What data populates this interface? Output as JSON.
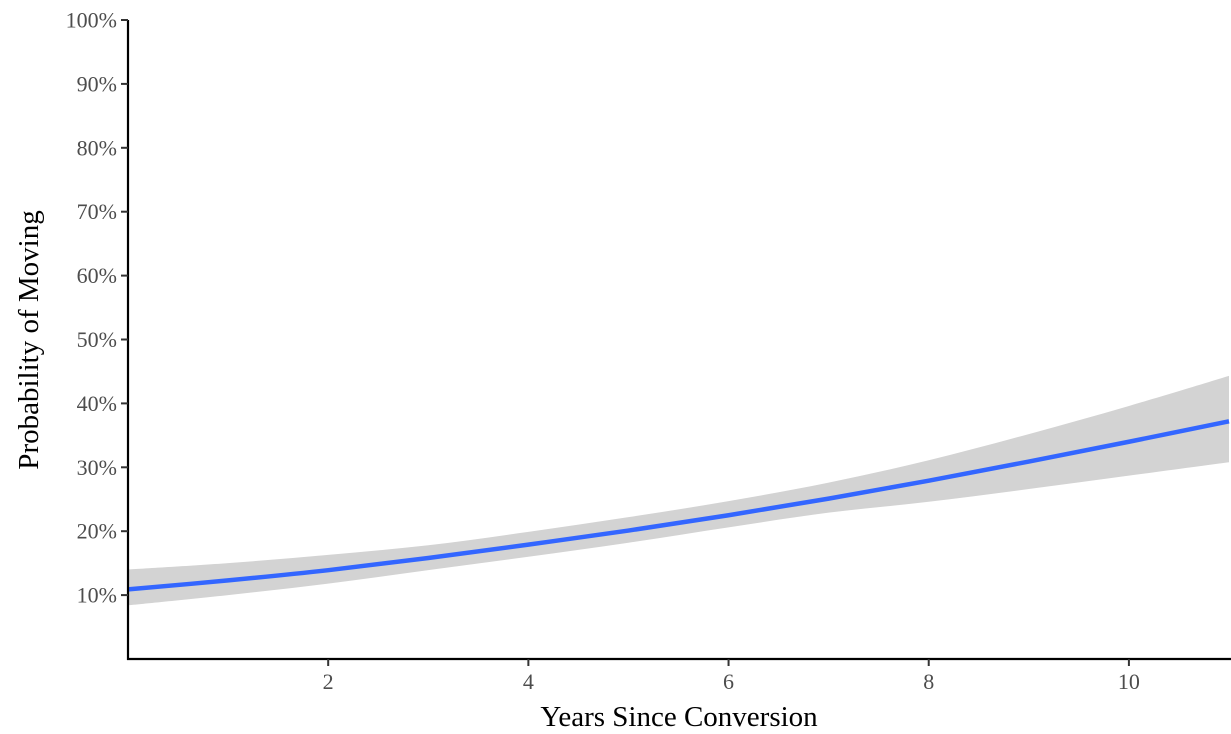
{
  "chart_data": {
    "type": "line",
    "title": "",
    "xlabel": "Years Since Conversion",
    "ylabel": "Probability of Moving",
    "xlim": [
      0,
      11
    ],
    "ylim": [
      0,
      100
    ],
    "x_ticks": [
      2,
      4,
      6,
      8,
      10
    ],
    "x_tick_labels": [
      "2",
      "4",
      "6",
      "8",
      "10"
    ],
    "y_ticks": [
      10,
      20,
      30,
      40,
      50,
      60,
      70,
      80,
      90,
      100
    ],
    "y_tick_labels": [
      "10%",
      "20%",
      "30%",
      "40%",
      "50%",
      "60%",
      "70%",
      "80%",
      "90%",
      "100%"
    ],
    "grid": false,
    "legend": "none",
    "series": [
      {
        "color": "#3366ff",
        "x": [
          0,
          1,
          2,
          3,
          4,
          5,
          6,
          7,
          8,
          9,
          10,
          11
        ],
        "y": [
          10.9,
          12.3,
          13.9,
          15.8,
          17.9,
          20.1,
          22.5,
          25.1,
          27.9,
          30.9,
          34.0,
          37.2
        ],
        "ci_lower": [
          8.4,
          10.0,
          11.8,
          13.9,
          16.0,
          18.2,
          20.6,
          22.9,
          24.6,
          26.6,
          28.7,
          30.8
        ],
        "ci_upper": [
          14.0,
          15.0,
          16.3,
          17.8,
          19.9,
          22.2,
          24.7,
          27.6,
          31.1,
          35.2,
          39.6,
          44.3
        ],
        "ci_color": "#d3d3d3"
      }
    ]
  }
}
